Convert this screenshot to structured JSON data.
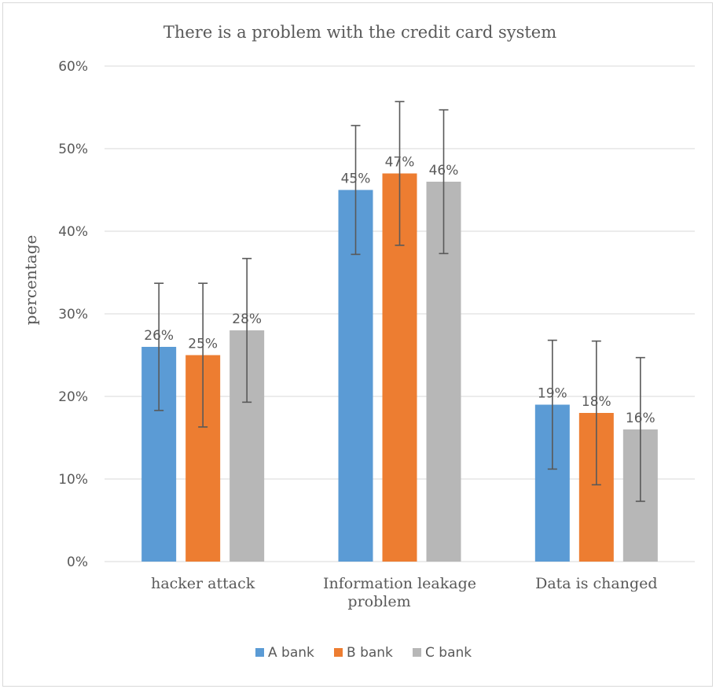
{
  "chart_data": {
    "type": "bar",
    "title": "There is a problem with the credit card system",
    "xlabel": "",
    "ylabel": "percentage",
    "categories": [
      "hacker attack",
      "Information leakage problem",
      "Data is changed"
    ],
    "category_lines": [
      [
        "hacker attack"
      ],
      [
        "Information leakage",
        "problem"
      ],
      [
        "Data is changed"
      ]
    ],
    "series": [
      {
        "name": "A bank",
        "color": "#5b9bd5",
        "values": [
          26,
          45,
          19
        ],
        "labels": [
          "26%",
          "45%",
          "19%"
        ],
        "error": [
          7.7,
          7.8,
          7.8
        ]
      },
      {
        "name": "B bank",
        "color": "#ed7d31",
        "values": [
          25,
          47,
          18
        ],
        "labels": [
          "25%",
          "47%",
          "18%"
        ],
        "error": [
          8.7,
          8.7,
          8.7
        ]
      },
      {
        "name": "C bank",
        "color": "#b7b7b7",
        "values": [
          28,
          46,
          16
        ],
        "labels": [
          "28%",
          "46%",
          "16%"
        ],
        "error": [
          8.7,
          8.7,
          8.7
        ]
      }
    ],
    "ylim": [
      0,
      60
    ],
    "yticks": [
      0,
      10,
      20,
      30,
      40,
      50,
      60
    ],
    "ytick_labels": [
      "0%",
      "10%",
      "20%",
      "30%",
      "40%",
      "50%",
      "60%"
    ],
    "grid": true,
    "legend": "bottom",
    "error_bars": true
  }
}
